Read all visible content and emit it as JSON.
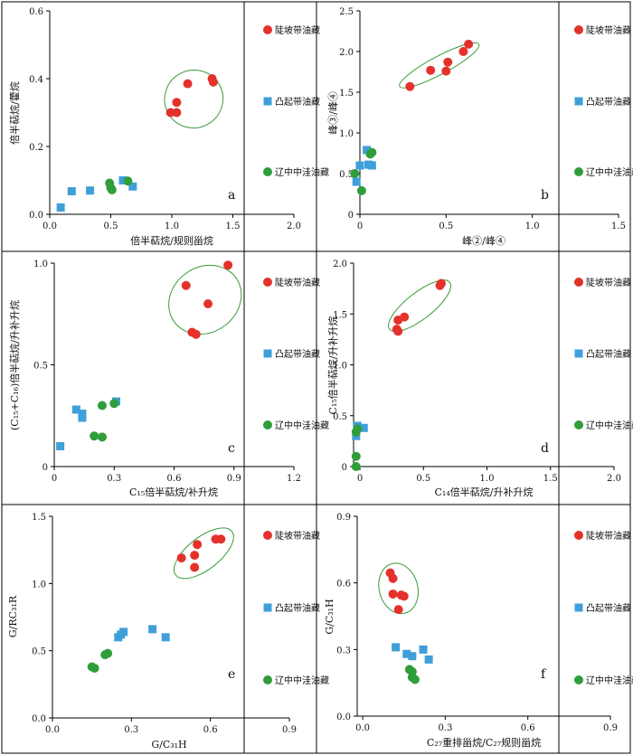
{
  "legend": {
    "series": [
      {
        "name": "陡坡带油藏",
        "marker": "circle",
        "color": "#e4312b"
      },
      {
        "name": "凸起带油藏",
        "marker": "square",
        "color": "#3f9fd9"
      },
      {
        "name": "辽中中洼油藏",
        "marker": "circle",
        "color": "#2f9e3a"
      }
    ],
    "placement": "right"
  },
  "colors": {
    "ellipse": "#3a9a3a",
    "border": "#000000"
  },
  "chart_data": [
    {
      "id": "a",
      "letter": "a",
      "type": "scatter",
      "xlabel": "倍半萜烷/规则甾烷",
      "ylabel": "倍半萜烷/藿烷",
      "xlim": [
        0,
        2.0
      ],
      "ylim": [
        0,
        0.6
      ],
      "xticks": [
        0,
        0.5,
        1.0,
        1.5,
        2.0
      ],
      "xticklabels": [
        "0.0",
        "0.5",
        "1.0",
        "1.5",
        "2.0"
      ],
      "yticks": [
        0,
        0.2,
        0.4,
        0.6
      ],
      "yticklabels": [
        "0.0",
        "0.2",
        "0.4",
        "0.6"
      ],
      "ellipse": {
        "cx": 1.18,
        "cy": 0.34,
        "rx": 0.24,
        "ry": 0.085,
        "angle": -28
      },
      "series": [
        {
          "points": [
            [
              1.33,
              0.4
            ],
            [
              1.34,
              0.39
            ],
            [
              1.13,
              0.385
            ],
            [
              1.04,
              0.33
            ],
            [
              0.99,
              0.3
            ],
            [
              1.04,
              0.3
            ]
          ]
        },
        {
          "points": [
            [
              0.09,
              0.02
            ],
            [
              0.18,
              0.068
            ],
            [
              0.33,
              0.07
            ],
            [
              0.6,
              0.1
            ],
            [
              0.68,
              0.082
            ]
          ]
        },
        {
          "points": [
            [
              0.49,
              0.092
            ],
            [
              0.5,
              0.078
            ],
            [
              0.51,
              0.072
            ],
            [
              0.64,
              0.098
            ]
          ]
        }
      ]
    },
    {
      "id": "b",
      "letter": "b",
      "type": "scatter",
      "xlabel": "峰②/峰④",
      "ylabel": "峰③/峰④",
      "xlim": [
        0,
        1.5
      ],
      "ylim": [
        0,
        2.5
      ],
      "xticks": [
        0,
        0.5,
        1.0,
        1.5
      ],
      "xticklabels": [
        "0",
        "0.5",
        "1.0",
        "1.5"
      ],
      "yticks": [
        0,
        0.5,
        1.0,
        1.5,
        2.0,
        2.5
      ],
      "yticklabels": [
        "0",
        "0.5",
        "1.0",
        "1.5",
        "2.0",
        "2.5"
      ],
      "ellipse": {
        "cx": 0.46,
        "cy": 1.83,
        "rx": 0.26,
        "ry": 0.11,
        "angle": -28
      },
      "series": [
        {
          "points": [
            [
              0.29,
              1.57
            ],
            [
              0.41,
              1.77
            ],
            [
              0.5,
              1.76
            ],
            [
              0.51,
              1.87
            ],
            [
              0.6,
              2.0
            ],
            [
              0.63,
              2.09
            ]
          ]
        },
        {
          "points": [
            [
              -0.02,
              0.4
            ],
            [
              0.0,
              0.6
            ],
            [
              0.04,
              0.79
            ],
            [
              0.05,
              0.61
            ],
            [
              0.07,
              0.6
            ]
          ]
        },
        {
          "points": [
            [
              -0.03,
              0.5
            ],
            [
              0.01,
              0.29
            ],
            [
              0.06,
              0.74
            ],
            [
              0.07,
              0.76
            ]
          ]
        }
      ]
    },
    {
      "id": "c",
      "letter": "c",
      "type": "scatter",
      "xlabel": "C₁₅倍半萜烷/补升烷",
      "ylabel": "(C₁₅+C₁₆)倍半萜烷/升补升烷",
      "xlim": [
        0,
        1.2
      ],
      "ylim": [
        0,
        1.0
      ],
      "xticks": [
        0,
        0.3,
        0.6,
        0.9,
        1.2
      ],
      "xticklabels": [
        "0",
        "0.3",
        "0.6",
        "0.9",
        "1.2"
      ],
      "yticks": [
        0,
        0.5,
        1.0
      ],
      "yticklabels": [
        "0",
        "0.5",
        "1.0"
      ],
      "ellipse": {
        "cx": 0.755,
        "cy": 0.82,
        "rx": 0.19,
        "ry": 0.16,
        "angle": -35
      },
      "series": [
        {
          "points": [
            [
              0.87,
              0.99
            ],
            [
              0.66,
              0.89
            ],
            [
              0.77,
              0.8
            ],
            [
              0.69,
              0.66
            ],
            [
              0.71,
              0.65
            ]
          ]
        },
        {
          "points": [
            [
              0.03,
              0.1
            ],
            [
              0.11,
              0.28
            ],
            [
              0.14,
              0.26
            ],
            [
              0.14,
              0.24
            ],
            [
              0.31,
              0.32
            ]
          ]
        },
        {
          "points": [
            [
              0.2,
              0.15
            ],
            [
              0.24,
              0.145
            ],
            [
              0.24,
              0.3
            ],
            [
              0.3,
              0.31
            ]
          ]
        }
      ]
    },
    {
      "id": "d",
      "letter": "d",
      "type": "scatter",
      "xlabel": "C₁₄倍半萜烷/升补升烷",
      "ylabel": "C₁₅倍半萜烷/升补升烷",
      "xlim": [
        -0.05,
        2.0
      ],
      "ylim": [
        0,
        2.0
      ],
      "xticks": [
        0,
        0.5,
        1.0,
        1.5,
        2.0
      ],
      "xticklabels": [
        "0",
        "0.5",
        "1.0",
        "1.5",
        "2.0"
      ],
      "yticks": [
        0,
        0.5,
        1.0,
        1.5,
        2.0
      ],
      "yticklabels": [
        "0",
        "0.5",
        "1.0",
        "1.5",
        "2.0"
      ],
      "ellipse": {
        "cx": 0.47,
        "cy": 1.58,
        "rx": 0.3,
        "ry": 0.13,
        "angle": -38
      },
      "series": [
        {
          "points": [
            [
              0.29,
              1.35
            ],
            [
              0.3,
              1.33
            ],
            [
              0.3,
              1.44
            ],
            [
              0.35,
              1.47
            ],
            [
              0.63,
              1.78
            ],
            [
              0.64,
              1.8
            ]
          ]
        },
        {
          "points": [
            [
              -0.03,
              0.3
            ],
            [
              -0.02,
              0.4
            ],
            [
              0.03,
              0.38
            ]
          ]
        },
        {
          "points": [
            [
              -0.03,
              0.0
            ],
            [
              -0.03,
              0.1
            ],
            [
              -0.03,
              0.34
            ],
            [
              -0.02,
              0.37
            ]
          ]
        }
      ]
    },
    {
      "id": "e",
      "letter": "e",
      "type": "scatter",
      "xlabel": "G/C₃₁H",
      "ylabel": "G/RC₃₁R",
      "xlim": [
        0,
        0.9
      ],
      "ylim": [
        0,
        1.5
      ],
      "xticks": [
        0,
        0.3,
        0.6,
        0.9
      ],
      "xticklabels": [
        "0.0",
        "0.3",
        "0.6",
        "0.9"
      ],
      "yticks": [
        0,
        0.5,
        1.0,
        1.5
      ],
      "yticklabels": [
        "0.0",
        "0.5",
        "1.0",
        "1.5"
      ],
      "ellipse": {
        "cx": 0.575,
        "cy": 1.225,
        "rx": 0.135,
        "ry": 0.12,
        "angle": -38
      },
      "series": [
        {
          "points": [
            [
              0.49,
              1.19
            ],
            [
              0.54,
              1.21
            ],
            [
              0.55,
              1.29
            ],
            [
              0.54,
              1.12
            ],
            [
              0.62,
              1.33
            ],
            [
              0.64,
              1.33
            ]
          ]
        },
        {
          "points": [
            [
              0.25,
              0.6
            ],
            [
              0.26,
              0.62
            ],
            [
              0.27,
              0.64
            ],
            [
              0.38,
              0.66
            ],
            [
              0.43,
              0.6
            ]
          ]
        },
        {
          "points": [
            [
              0.15,
              0.38
            ],
            [
              0.16,
              0.37
            ],
            [
              0.2,
              0.47
            ],
            [
              0.21,
              0.48
            ]
          ]
        }
      ]
    },
    {
      "id": "f",
      "letter": "f",
      "type": "scatter",
      "xlabel": "C₂₇重排甾烷/C₂₇规则甾烷",
      "ylabel": "G/C₃₁H",
      "xlim": [
        -0.02,
        0.9
      ],
      "ylim": [
        0,
        0.9
      ],
      "xticks": [
        0,
        0.3,
        0.6,
        0.9
      ],
      "xticklabels": [
        "0.0",
        "0.3",
        "0.6",
        "0.9"
      ],
      "yticks": [
        0,
        0.3,
        0.6,
        0.9
      ],
      "yticklabels": [
        "0.0",
        "0.3",
        "0.6",
        "0.9"
      ],
      "ellipse": {
        "cx": 0.13,
        "cy": 0.575,
        "rx": 0.07,
        "ry": 0.115,
        "angle": -15
      },
      "series": [
        {
          "points": [
            [
              0.1,
              0.645
            ],
            [
              0.11,
              0.62
            ],
            [
              0.11,
              0.55
            ],
            [
              0.14,
              0.545
            ],
            [
              0.15,
              0.54
            ],
            [
              0.13,
              0.48
            ]
          ]
        },
        {
          "points": [
            [
              0.12,
              0.31
            ],
            [
              0.16,
              0.28
            ],
            [
              0.18,
              0.27
            ],
            [
              0.22,
              0.3
            ],
            [
              0.24,
              0.255
            ]
          ]
        },
        {
          "points": [
            [
              0.17,
              0.21
            ],
            [
              0.18,
              0.2
            ],
            [
              0.18,
              0.175
            ],
            [
              0.19,
              0.165
            ]
          ]
        }
      ]
    }
  ]
}
